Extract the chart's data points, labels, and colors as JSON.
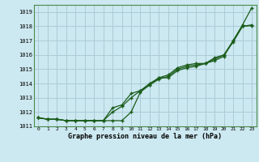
{
  "title": "Graphe pression niveau de la mer (hPa)",
  "background_color": "#cce8f0",
  "grid_color": "#aaccd8",
  "line_color": "#1a5c1a",
  "ylim": [
    1011,
    1019.5
  ],
  "yticks": [
    1011,
    1012,
    1013,
    1014,
    1015,
    1016,
    1017,
    1018,
    1019
  ],
  "xticks": [
    0,
    1,
    2,
    3,
    4,
    5,
    6,
    7,
    8,
    9,
    10,
    11,
    12,
    13,
    14,
    15,
    16,
    17,
    18,
    19,
    20,
    21,
    22,
    23
  ],
  "series1": [
    1011.6,
    1011.5,
    1011.5,
    1011.4,
    1011.4,
    1011.4,
    1011.4,
    1011.4,
    1011.4,
    1011.4,
    1012.0,
    1013.4,
    1013.9,
    1014.4,
    1014.4,
    1014.9,
    1015.1,
    1015.2,
    1015.4,
    1015.6,
    1015.9,
    1017.0,
    1018.1,
    1019.3
  ],
  "series2": [
    1011.6,
    1011.5,
    1011.5,
    1011.4,
    1011.4,
    1011.4,
    1011.4,
    1011.4,
    1012.0,
    1012.4,
    1013.0,
    1013.5,
    1013.9,
    1014.3,
    1014.5,
    1015.0,
    1015.2,
    1015.3,
    1015.4,
    1015.7,
    1016.0,
    1017.0,
    1018.0,
    1018.1
  ],
  "series3": [
    1011.6,
    1011.5,
    1011.5,
    1011.4,
    1011.4,
    1011.4,
    1011.4,
    1011.4,
    1012.3,
    1012.5,
    1013.3,
    1013.5,
    1014.0,
    1014.4,
    1014.6,
    1015.1,
    1015.3,
    1015.4,
    1015.4,
    1015.8,
    1016.0,
    1016.9,
    1018.0,
    1018.05
  ]
}
